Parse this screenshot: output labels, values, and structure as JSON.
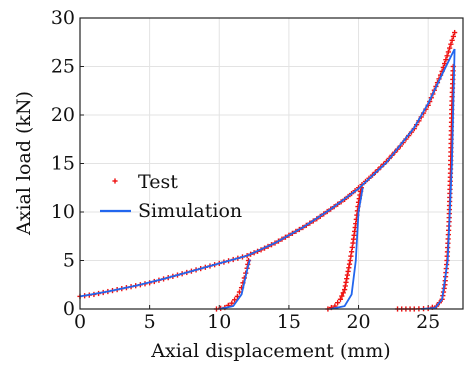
{
  "chart_data": {
    "type": "scatter",
    "xlabel": "Axial displacement (mm)",
    "ylabel": "Axial load (kN)",
    "xlim": [
      0,
      27.5
    ],
    "ylim": [
      0,
      30
    ],
    "xticks": [
      0,
      5,
      10,
      15,
      20,
      25
    ],
    "yticks": [
      0,
      5,
      10,
      15,
      20,
      25,
      30
    ],
    "grid": true,
    "legend_position": "center-left",
    "legend": [
      "Test",
      "Simulation"
    ],
    "colors": {
      "test": "#ee1111",
      "simulation": "#2266ee"
    },
    "series": [
      {
        "name": "Test",
        "style": "markers",
        "segments": [
          [
            [
              0,
              1.3
            ],
            [
              1,
              1.5
            ],
            [
              2,
              1.8
            ],
            [
              3,
              2.1
            ],
            [
              4,
              2.4
            ],
            [
              5,
              2.7
            ],
            [
              6,
              3.1
            ],
            [
              7,
              3.5
            ],
            [
              8,
              3.9
            ],
            [
              9,
              4.3
            ],
            [
              10,
              4.7
            ],
            [
              11,
              5.1
            ],
            [
              12,
              5.5
            ],
            [
              13,
              6.1
            ],
            [
              14,
              6.8
            ],
            [
              15,
              7.6
            ],
            [
              16,
              8.4
            ],
            [
              17,
              9.3
            ],
            [
              18,
              10.3
            ],
            [
              19,
              11.3
            ],
            [
              20,
              12.5
            ],
            [
              21,
              13.8
            ],
            [
              22,
              15.2
            ],
            [
              23,
              16.8
            ],
            [
              24,
              18.6
            ],
            [
              25,
              21
            ],
            [
              26,
              24.5
            ],
            [
              26.9,
              28.5
            ]
          ],
          [
            [
              9.8,
              0
            ],
            [
              10.4,
              0.15
            ],
            [
              10.9,
              0.6
            ],
            [
              11.3,
              1.3
            ],
            [
              11.6,
              2.2
            ],
            [
              11.8,
              3.2
            ],
            [
              12,
              4.2
            ],
            [
              12.1,
              5
            ]
          ],
          [
            [
              17.8,
              0
            ],
            [
              18.3,
              0.3
            ],
            [
              18.7,
              1
            ],
            [
              19,
              2
            ],
            [
              19.2,
              3.5
            ],
            [
              19.4,
              5
            ],
            [
              19.6,
              6.8
            ],
            [
              19.8,
              8.8
            ],
            [
              20,
              11
            ],
            [
              20.2,
              12.5
            ]
          ],
          [
            [
              22.8,
              0
            ],
            [
              24,
              0
            ],
            [
              25,
              0.05
            ],
            [
              25.6,
              0.3
            ],
            [
              26,
              1
            ],
            [
              26.2,
              2.5
            ],
            [
              26.35,
              5
            ],
            [
              26.5,
              9
            ],
            [
              26.6,
              14
            ],
            [
              26.7,
              21
            ],
            [
              26.8,
              25
            ]
          ]
        ]
      },
      {
        "name": "Simulation",
        "style": "line",
        "segments": [
          [
            [
              0,
              1.3
            ],
            [
              2,
              1.8
            ],
            [
              4,
              2.4
            ],
            [
              6,
              3.1
            ],
            [
              8,
              3.9
            ],
            [
              10,
              4.7
            ],
            [
              12,
              5.5
            ],
            [
              14,
              6.8
            ],
            [
              16,
              8.4
            ],
            [
              18,
              10.3
            ],
            [
              20,
              12.4
            ],
            [
              22,
              15.1
            ],
            [
              24,
              18.7
            ],
            [
              25,
              21.2
            ],
            [
              26,
              24.2
            ],
            [
              26.9,
              26.8
            ]
          ],
          [
            [
              10,
              0
            ],
            [
              11,
              0.3
            ],
            [
              11.6,
              1.5
            ],
            [
              12,
              4
            ],
            [
              12.2,
              5.1
            ]
          ],
          [
            [
              18,
              0
            ],
            [
              19,
              0.3
            ],
            [
              19.5,
              1.5
            ],
            [
              19.8,
              5
            ],
            [
              20,
              10
            ],
            [
              20.3,
              12.5
            ]
          ],
          [
            [
              24.5,
              0
            ],
            [
              25.5,
              0.1
            ],
            [
              26,
              1
            ],
            [
              26.4,
              5
            ],
            [
              26.7,
              15
            ],
            [
              26.9,
              26.8
            ]
          ]
        ]
      }
    ]
  }
}
